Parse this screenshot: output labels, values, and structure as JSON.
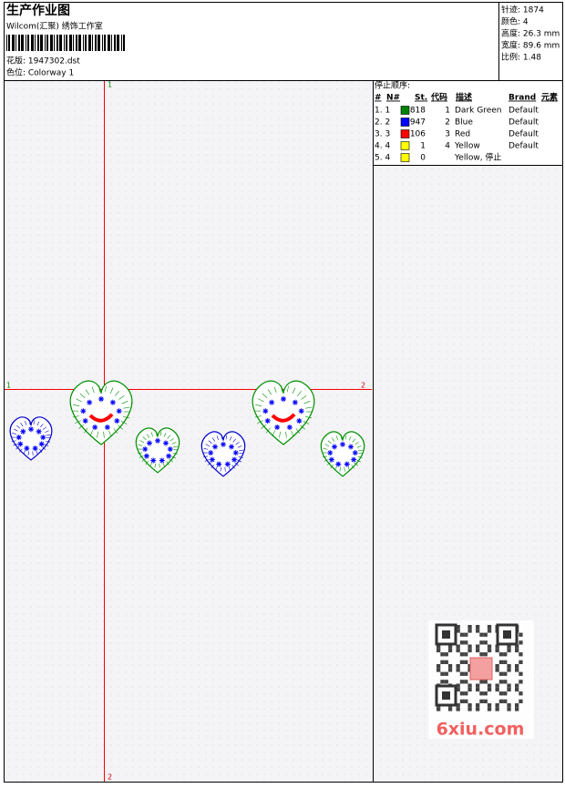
{
  "header": {
    "title": "生产作业图",
    "company": "Wilcom(汇聚) 绣饰工作室",
    "design": "花版: 1947302.dst",
    "colorway": "色位: Colorway 1"
  },
  "stats": [
    "针迹: 1874",
    "颜色: 4",
    "高度: 26.3 mm",
    "宽度: 89.6 mm",
    "比例: 1.48"
  ],
  "stop_sequence": {
    "title": "停止顺序:",
    "columns": [
      "#",
      "N#",
      "St.",
      "代码",
      "描述",
      "Brand",
      "元素"
    ],
    "rows": [
      {
        "num": "1. 1",
        "color": "#008000",
        "stitches": "818",
        "code": "1",
        "description": "Dark Green",
        "brand": "Default"
      },
      {
        "num": "2. 2",
        "color": "#0000ff",
        "stitches": "947",
        "code": "2",
        "description": "Blue",
        "brand": "Default"
      },
      {
        "num": "3. 3",
        "color": "#ff0000",
        "stitches": "106",
        "code": "3",
        "description": "Red",
        "brand": "Default"
      },
      {
        "num": "4. 4",
        "color": "#ffff00",
        "stitches": "1",
        "code": "4",
        "description": "Yellow",
        "brand": "Default"
      },
      {
        "num": "5. 4",
        "color": "#ffff00",
        "stitches": "0",
        "description": "Yellow, 停止"
      }
    ]
  },
  "markers": {
    "top": "1",
    "bottom": "2",
    "left": "1",
    "right": "2"
  },
  "watermark": "6xiu.com"
}
